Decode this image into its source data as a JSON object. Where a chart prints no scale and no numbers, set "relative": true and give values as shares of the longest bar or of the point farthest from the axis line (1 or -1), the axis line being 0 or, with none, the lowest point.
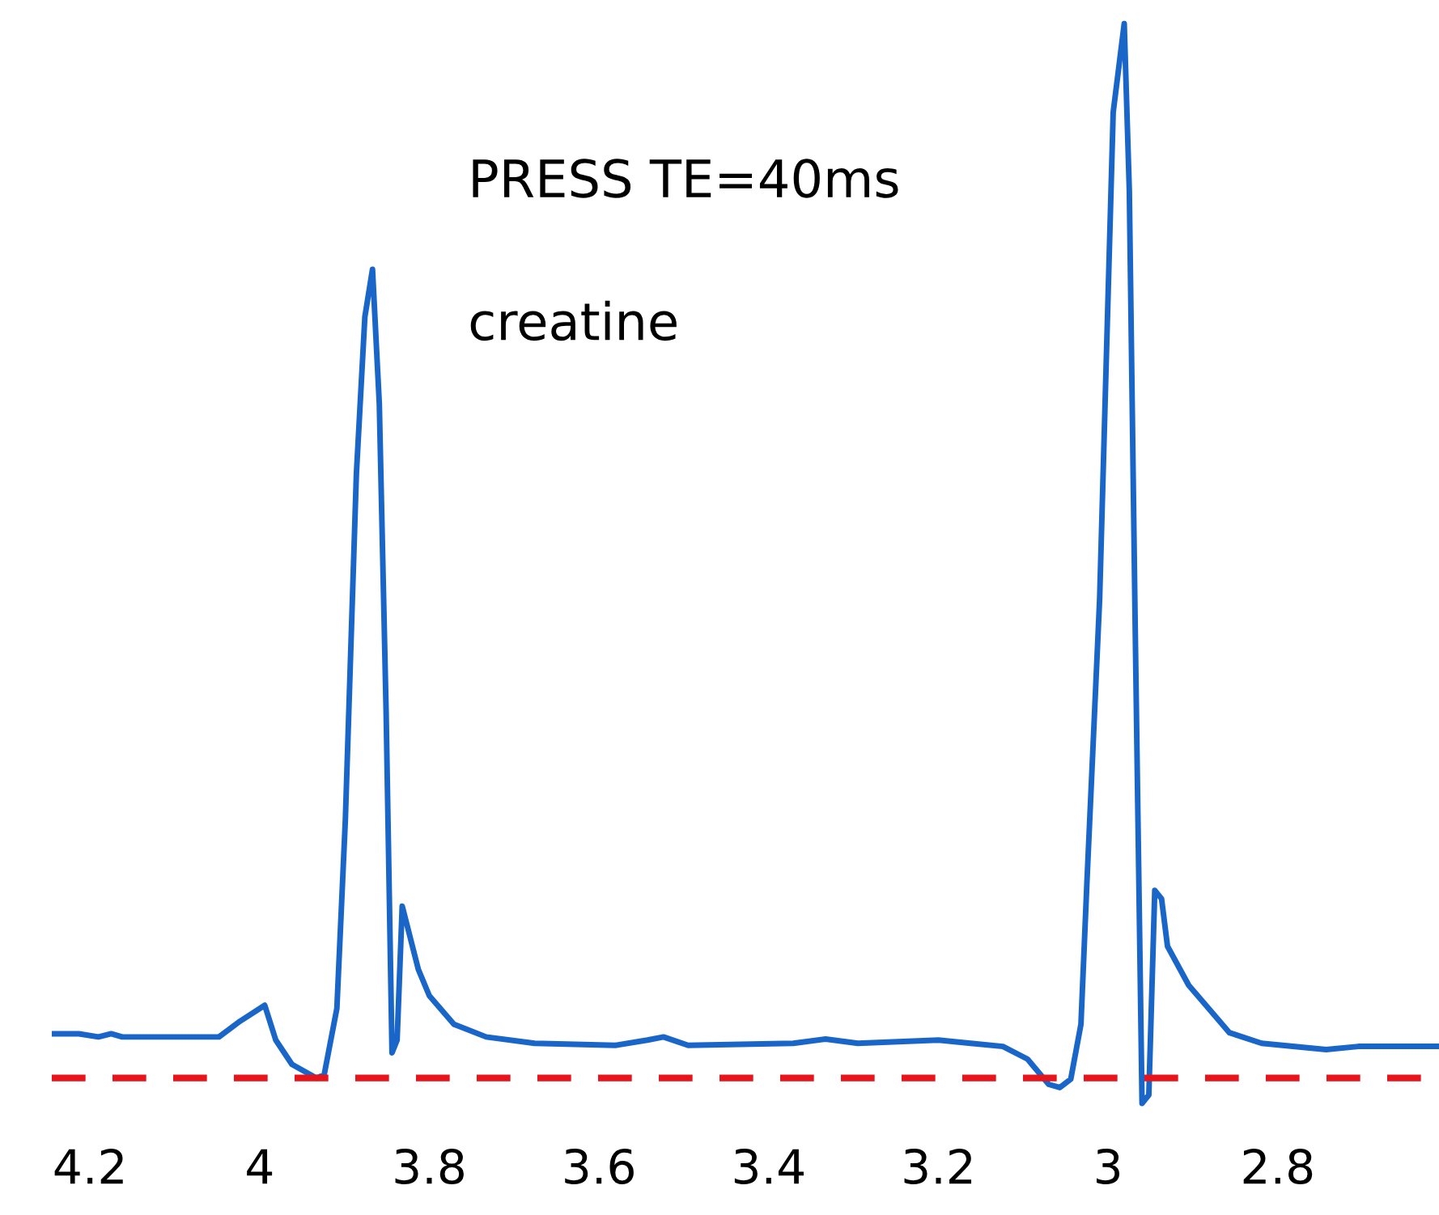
{
  "chart_data": {
    "type": "line",
    "relative": true,
    "annotations": [
      "PRESS TE=40ms",
      "creatine"
    ],
    "xlim": [
      4.245,
      2.61
    ],
    "xticks": [
      4.2,
      4,
      3.8,
      3.6,
      3.4,
      3.2,
      3,
      2.8
    ],
    "ref_lines": [
      {
        "axis": "y",
        "value": 0,
        "color": "#e8141c",
        "line_style": "dashed"
      }
    ],
    "series": [
      {
        "color": "#1a66c8",
        "x": [
          4.244,
          4.213,
          4.19,
          4.175,
          4.162,
          4.048,
          4.023,
          3.994,
          3.981,
          3.962,
          3.933,
          3.924,
          3.909,
          3.899,
          3.886,
          3.876,
          3.867,
          3.859,
          3.851,
          3.844,
          3.838,
          3.832,
          3.825,
          3.813,
          3.8,
          3.771,
          3.733,
          3.676,
          3.581,
          3.543,
          3.524,
          3.495,
          3.371,
          3.333,
          3.295,
          3.2,
          3.162,
          3.124,
          3.095,
          3.07,
          3.057,
          3.044,
          3.032,
          3.025,
          3.01,
          2.994,
          2.981,
          2.975,
          2.968,
          2.96,
          2.952,
          2.945,
          2.937,
          2.93,
          2.905,
          2.857,
          2.819,
          2.743,
          2.705,
          2.611
        ],
        "values": [
          0.042,
          0.042,
          0.039,
          0.042,
          0.039,
          0.039,
          0.054,
          0.069,
          0.036,
          0.013,
          0.0,
          0.003,
          0.066,
          0.245,
          0.573,
          0.722,
          0.767,
          0.64,
          0.349,
          0.024,
          0.036,
          0.163,
          0.141,
          0.103,
          0.078,
          0.051,
          0.039,
          0.033,
          0.031,
          0.036,
          0.039,
          0.031,
          0.033,
          0.037,
          0.033,
          0.036,
          0.033,
          0.03,
          0.018,
          -0.006,
          -0.009,
          -0.001,
          0.051,
          0.185,
          0.454,
          0.916,
          1.0,
          0.842,
          0.424,
          -0.024,
          -0.016,
          0.178,
          0.17,
          0.125,
          0.088,
          0.043,
          0.033,
          0.027,
          0.03,
          0.03
        ]
      }
    ]
  }
}
